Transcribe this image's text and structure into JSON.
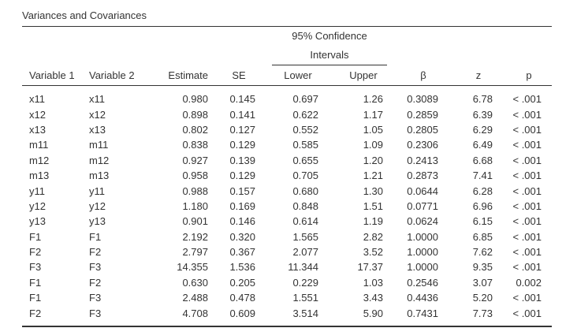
{
  "title": "Variances and Covariances",
  "ci_header": "95% Confidence Intervals",
  "columns": {
    "var1": "Variable 1",
    "var2": "Variable 2",
    "estimate": "Estimate",
    "se": "SE",
    "lower": "Lower",
    "upper": "Upper",
    "beta": "β",
    "z": "z",
    "p": "p"
  },
  "rows": [
    {
      "var1": "x11",
      "var2": "x11",
      "estimate": "0.980",
      "se": "0.145",
      "lower": "0.697",
      "upper": "1.26",
      "beta": "0.3089",
      "z": "6.78",
      "p": "< .001"
    },
    {
      "var1": "x12",
      "var2": "x12",
      "estimate": "0.898",
      "se": "0.141",
      "lower": "0.622",
      "upper": "1.17",
      "beta": "0.2859",
      "z": "6.39",
      "p": "< .001"
    },
    {
      "var1": "x13",
      "var2": "x13",
      "estimate": "0.802",
      "se": "0.127",
      "lower": "0.552",
      "upper": "1.05",
      "beta": "0.2805",
      "z": "6.29",
      "p": "< .001"
    },
    {
      "var1": "m11",
      "var2": "m11",
      "estimate": "0.838",
      "se": "0.129",
      "lower": "0.585",
      "upper": "1.09",
      "beta": "0.2306",
      "z": "6.49",
      "p": "< .001"
    },
    {
      "var1": "m12",
      "var2": "m12",
      "estimate": "0.927",
      "se": "0.139",
      "lower": "0.655",
      "upper": "1.20",
      "beta": "0.2413",
      "z": "6.68",
      "p": "< .001"
    },
    {
      "var1": "m13",
      "var2": "m13",
      "estimate": "0.958",
      "se": "0.129",
      "lower": "0.705",
      "upper": "1.21",
      "beta": "0.2873",
      "z": "7.41",
      "p": "< .001"
    },
    {
      "var1": "y11",
      "var2": "y11",
      "estimate": "0.988",
      "se": "0.157",
      "lower": "0.680",
      "upper": "1.30",
      "beta": "0.0644",
      "z": "6.28",
      "p": "< .001"
    },
    {
      "var1": "y12",
      "var2": "y12",
      "estimate": "1.180",
      "se": "0.169",
      "lower": "0.848",
      "upper": "1.51",
      "beta": "0.0771",
      "z": "6.96",
      "p": "< .001"
    },
    {
      "var1": "y13",
      "var2": "y13",
      "estimate": "0.901",
      "se": "0.146",
      "lower": "0.614",
      "upper": "1.19",
      "beta": "0.0624",
      "z": "6.15",
      "p": "< .001"
    },
    {
      "var1": "F1",
      "var2": "F1",
      "estimate": "2.192",
      "se": "0.320",
      "lower": "1.565",
      "upper": "2.82",
      "beta": "1.0000",
      "z": "6.85",
      "p": "< .001"
    },
    {
      "var1": "F2",
      "var2": "F2",
      "estimate": "2.797",
      "se": "0.367",
      "lower": "2.077",
      "upper": "3.52",
      "beta": "1.0000",
      "z": "7.62",
      "p": "< .001"
    },
    {
      "var1": "F3",
      "var2": "F3",
      "estimate": "14.355",
      "se": "1.536",
      "lower": "11.344",
      "upper": "17.37",
      "beta": "1.0000",
      "z": "9.35",
      "p": "< .001"
    },
    {
      "var1": "F1",
      "var2": "F2",
      "estimate": "0.630",
      "se": "0.205",
      "lower": "0.229",
      "upper": "1.03",
      "beta": "0.2546",
      "z": "3.07",
      "p": "0.002"
    },
    {
      "var1": "F1",
      "var2": "F3",
      "estimate": "2.488",
      "se": "0.478",
      "lower": "1.551",
      "upper": "3.43",
      "beta": "0.4436",
      "z": "5.20",
      "p": "< .001"
    },
    {
      "var1": "F2",
      "var2": "F3",
      "estimate": "4.708",
      "se": "0.609",
      "lower": "3.514",
      "upper": "5.90",
      "beta": "0.7431",
      "z": "7.73",
      "p": "< .001"
    }
  ]
}
